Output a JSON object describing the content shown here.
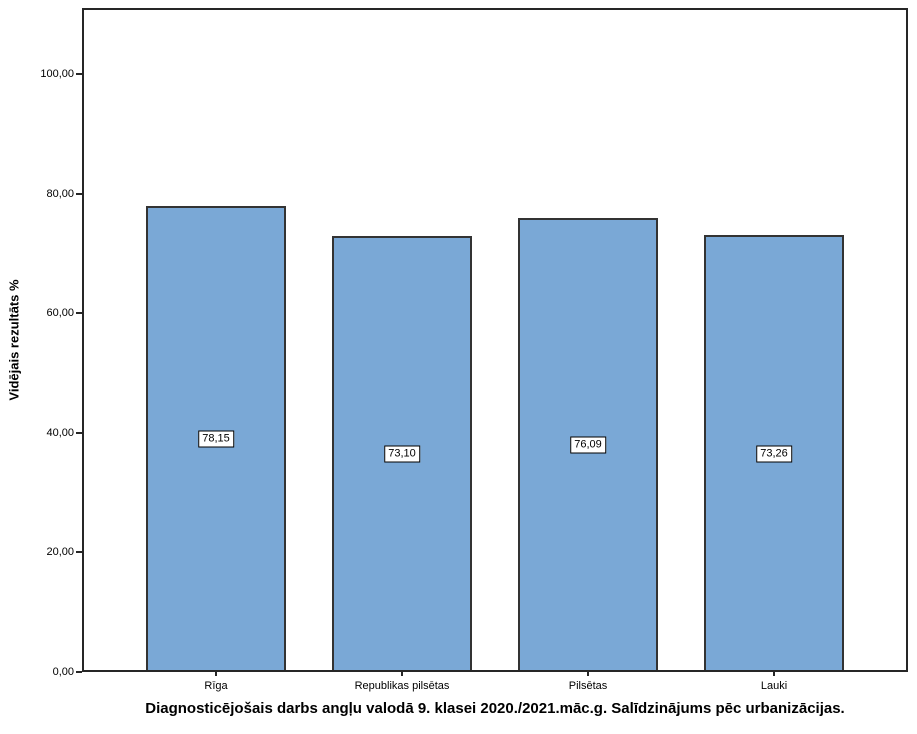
{
  "chart_data": {
    "type": "bar",
    "title": "Diagnosticējošais darbs angļu valodā 9. klasei 2020./2021.māc.g. Salīdzinājums pēc urbanizācijas.",
    "xlabel": "",
    "ylabel": "Vidējais rezultāts %",
    "categories": [
      "Rīga",
      "Republikas pilsētas",
      "Pilsētas",
      "Lauki"
    ],
    "values": [
      78.15,
      73.1,
      76.09,
      73.26
    ],
    "bar_value_labels": [
      "78,15",
      "73,10",
      "76,09",
      "73,26"
    ],
    "yticks": [
      0,
      20,
      40,
      60,
      80,
      100
    ],
    "ytick_labels": [
      "0,00",
      "20,00",
      "40,00",
      "60,00",
      "80,00",
      "100,00"
    ],
    "ylim": [
      0,
      111.1
    ],
    "grid": false,
    "legend_position": "none",
    "colors": {
      "bar_fill": "#7AA8D6",
      "bar_border": "#333333",
      "frame_border": "#262626",
      "background": "#FFFFFF",
      "text": "#000000"
    }
  }
}
